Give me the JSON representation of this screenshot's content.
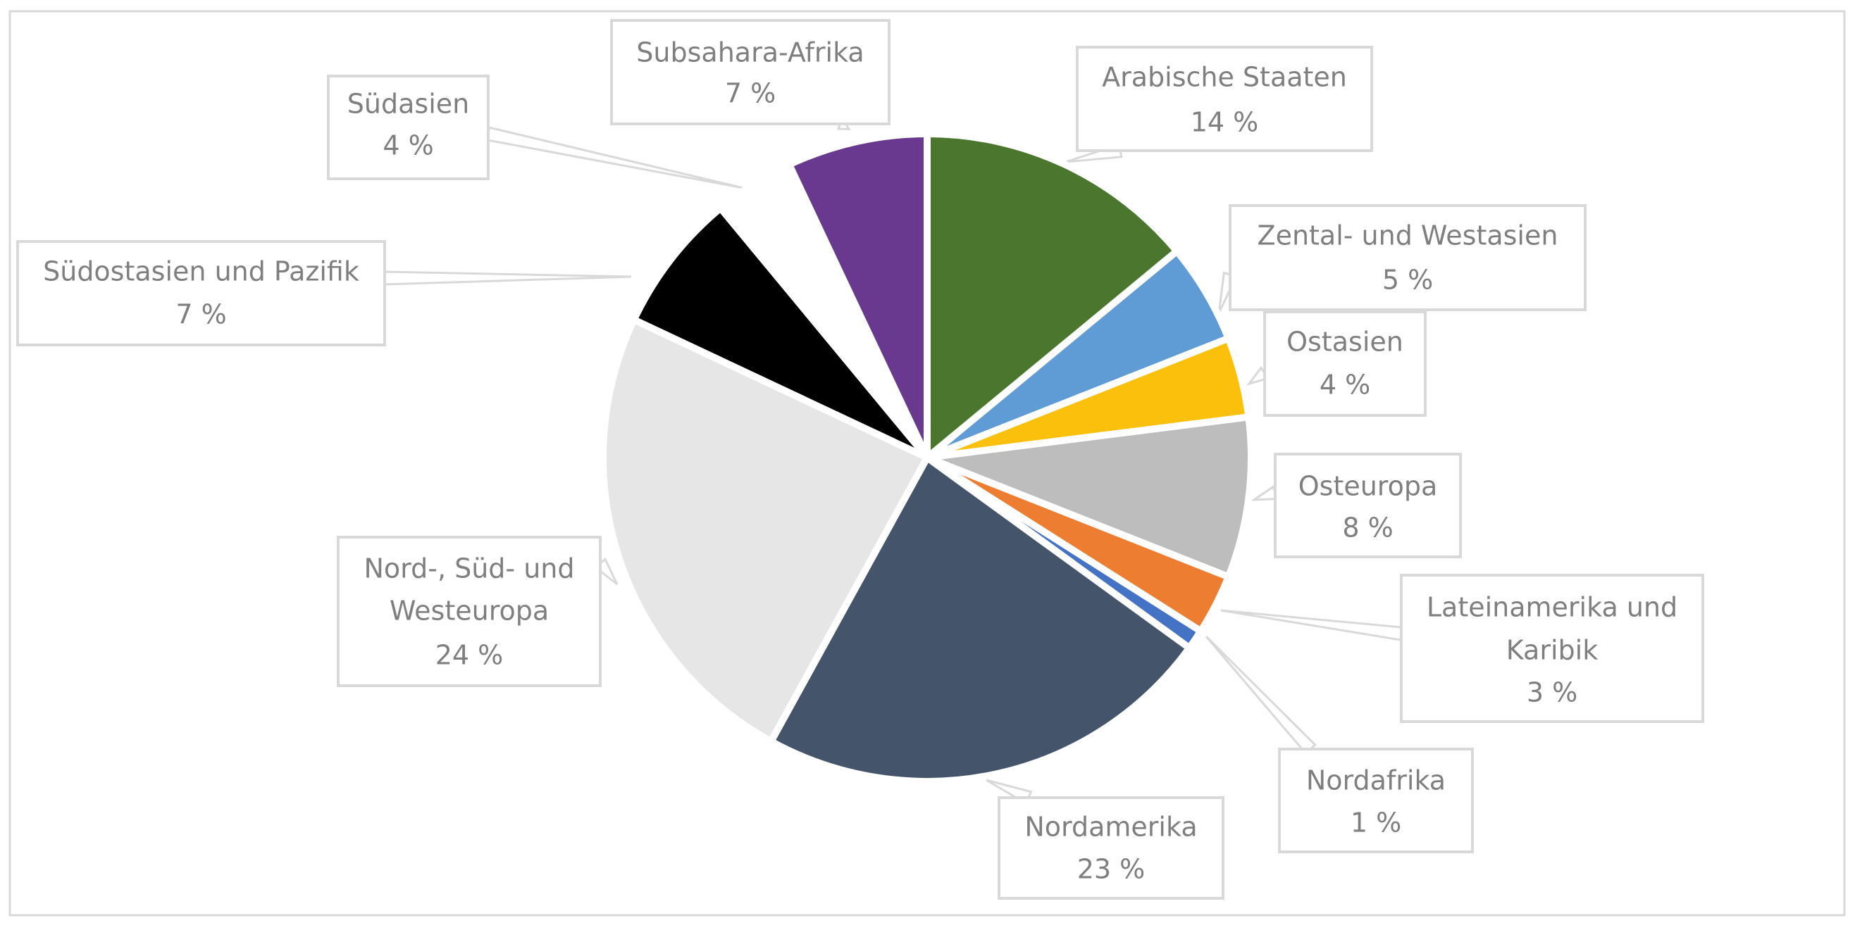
{
  "chart_data": {
    "type": "pie",
    "title": "",
    "unit": "%",
    "slices": [
      {
        "label": "Arabische Staaten",
        "value_text": "14 %",
        "value": 14,
        "color": "#4a772d"
      },
      {
        "label": "Zental- und Westasien",
        "value_text": "5 %",
        "value": 5,
        "color": "#5f9bd5"
      },
      {
        "label": "Ostasien",
        "value_text": "4 %",
        "value": 4,
        "color": "#fbc00b"
      },
      {
        "label": "Osteuropa",
        "value_text": "8 %",
        "value": 8,
        "color": "#bdbdbd"
      },
      {
        "label": "Lateinamerika und Karibik",
        "value_text": "3 %",
        "value": 3,
        "color": "#ed7d31"
      },
      {
        "label": "Nordafrika",
        "value_text": "1 %",
        "value": 1,
        "color": "#4472c4"
      },
      {
        "label": "Nordamerika",
        "value_text": "23 %",
        "value": 23,
        "color": "#44546a"
      },
      {
        "label": "Nord-, Süd- und Westeuropa",
        "value_text": "24 %",
        "value": 24,
        "color": "#e7e6e6"
      },
      {
        "label": "Südostasien und Pazifik",
        "value_text": "7 %",
        "value": 7,
        "color": "#000000"
      },
      {
        "label": "Südasien",
        "value_text": "4 %",
        "value": 4,
        "color": "#ffffff"
      },
      {
        "label": "Subsahara-Afrika",
        "value_text": "7 %",
        "value": 7,
        "color": "#68398f"
      }
    ],
    "legend": "none",
    "data_labels": "callouts"
  }
}
